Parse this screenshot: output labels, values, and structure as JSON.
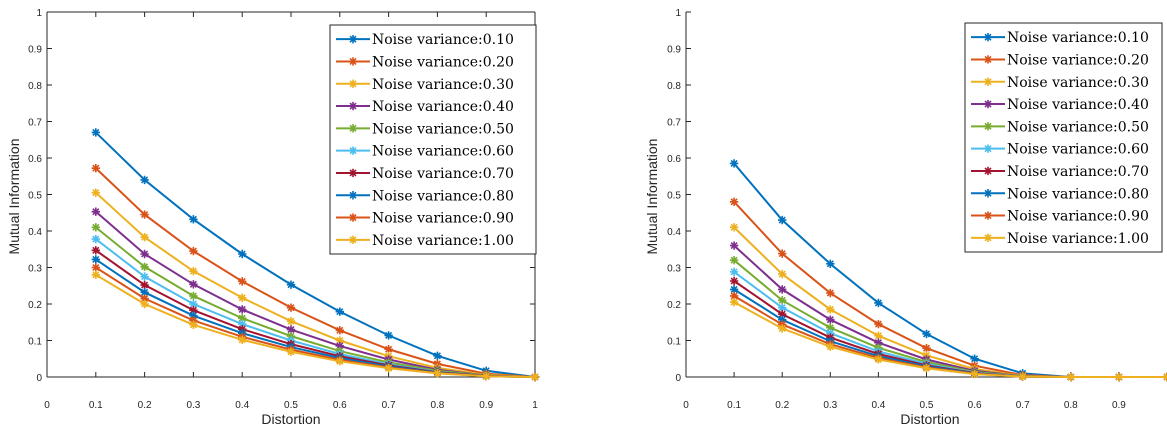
{
  "colors": [
    "#0072bd",
    "#d95319",
    "#edb120",
    "#7e2f8e",
    "#77ac30",
    "#4dbeee",
    "#a2142f",
    "#0072bd",
    "#d95319",
    "#edb120"
  ],
  "legend_labels": [
    "Noise variance:0.10",
    "Noise variance:0.20",
    "Noise variance:0.30",
    "Noise variance:0.40",
    "Noise variance:0.50",
    "Noise variance:0.60",
    "Noise variance:0.70",
    "Noise variance:0.80",
    "Noise variance:0.90",
    "Noise variance:1.00"
  ],
  "chart_data": [
    {
      "type": "line",
      "xlabel": "Distortion",
      "ylabel": "Mutual Information",
      "xlim": [
        0,
        1
      ],
      "ylim": [
        0,
        1
      ],
      "xticks": [
        0,
        0.1,
        0.2,
        0.3,
        0.4,
        0.5,
        0.6,
        0.7,
        0.8,
        0.9,
        1
      ],
      "yticks": [
        0,
        0.1,
        0.2,
        0.3,
        0.4,
        0.5,
        0.6,
        0.7,
        0.8,
        0.9,
        1
      ],
      "legend_position": "top-right",
      "grid": false,
      "x": [
        0.1,
        0.2,
        0.3,
        0.4,
        0.5,
        0.6,
        0.7,
        0.8,
        0.9,
        1.0
      ],
      "series": [
        {
          "name": "Noise variance:0.10",
          "values": [
            0.67,
            0.54,
            0.432,
            0.337,
            0.253,
            0.179,
            0.114,
            0.058,
            0.017,
            0.0
          ]
        },
        {
          "name": "Noise variance:0.20",
          "values": [
            0.572,
            0.445,
            0.345,
            0.262,
            0.19,
            0.128,
            0.076,
            0.036,
            0.009,
            0.0
          ]
        },
        {
          "name": "Noise variance:0.30",
          "values": [
            0.505,
            0.383,
            0.29,
            0.217,
            0.153,
            0.1,
            0.057,
            0.025,
            0.006,
            0.0
          ]
        },
        {
          "name": "Noise variance:0.40",
          "values": [
            0.453,
            0.337,
            0.254,
            0.185,
            0.13,
            0.085,
            0.048,
            0.02,
            0.004,
            0.0
          ]
        },
        {
          "name": "Noise variance:0.50",
          "values": [
            0.41,
            0.302,
            0.222,
            0.161,
            0.112,
            0.071,
            0.04,
            0.017,
            0.004,
            0.0
          ]
        },
        {
          "name": "Noise variance:0.60",
          "values": [
            0.378,
            0.275,
            0.2,
            0.145,
            0.1,
            0.063,
            0.035,
            0.014,
            0.003,
            0.0
          ]
        },
        {
          "name": "Noise variance:0.70",
          "values": [
            0.347,
            0.252,
            0.183,
            0.131,
            0.09,
            0.057,
            0.032,
            0.013,
            0.003,
            0.0
          ]
        },
        {
          "name": "Noise variance:0.80",
          "values": [
            0.322,
            0.232,
            0.168,
            0.12,
            0.082,
            0.052,
            0.029,
            0.012,
            0.002,
            0.0
          ]
        },
        {
          "name": "Noise variance:0.90",
          "values": [
            0.3,
            0.215,
            0.155,
            0.11,
            0.075,
            0.047,
            0.026,
            0.011,
            0.002,
            0.0
          ]
        },
        {
          "name": "Noise variance:1.00",
          "values": [
            0.28,
            0.2,
            0.143,
            0.102,
            0.069,
            0.043,
            0.024,
            0.01,
            0.002,
            0.0
          ]
        }
      ]
    },
    {
      "type": "line",
      "xlabel": "Distortion",
      "ylabel": "Mutual Information",
      "xlim": [
        0,
        1
      ],
      "ylim": [
        0,
        1
      ],
      "xticks": [
        0,
        0.1,
        0.2,
        0.3,
        0.4,
        0.5,
        0.6,
        0.7,
        0.8,
        0.9
      ],
      "yticks": [
        0,
        0.1,
        0.2,
        0.3,
        0.4,
        0.5,
        0.6,
        0.7,
        0.8,
        0.9,
        1
      ],
      "legend_position": "top-right",
      "grid": false,
      "x": [
        0.1,
        0.2,
        0.3,
        0.4,
        0.5,
        0.6,
        0.7,
        0.8,
        0.9,
        1.0
      ],
      "series": [
        {
          "name": "Noise variance:0.10",
          "values": [
            0.585,
            0.43,
            0.31,
            0.203,
            0.118,
            0.05,
            0.01,
            0.0,
            0.0,
            0.0
          ]
        },
        {
          "name": "Noise variance:0.20",
          "values": [
            0.48,
            0.338,
            0.23,
            0.145,
            0.079,
            0.031,
            0.005,
            0.0,
            0.0,
            0.0
          ]
        },
        {
          "name": "Noise variance:0.30",
          "values": [
            0.41,
            0.282,
            0.185,
            0.113,
            0.059,
            0.022,
            0.003,
            0.0,
            0.0,
            0.0
          ]
        },
        {
          "name": "Noise variance:0.40",
          "values": [
            0.36,
            0.24,
            0.157,
            0.094,
            0.048,
            0.017,
            0.002,
            0.0,
            0.0,
            0.0
          ]
        },
        {
          "name": "Noise variance:0.50",
          "values": [
            0.32,
            0.21,
            0.135,
            0.08,
            0.041,
            0.014,
            0.002,
            0.0,
            0.0,
            0.0
          ]
        },
        {
          "name": "Noise variance:0.60",
          "values": [
            0.288,
            0.19,
            0.12,
            0.07,
            0.036,
            0.012,
            0.001,
            0.0,
            0.0,
            0.0
          ]
        },
        {
          "name": "Noise variance:0.70",
          "values": [
            0.263,
            0.172,
            0.108,
            0.063,
            0.032,
            0.011,
            0.001,
            0.0,
            0.0,
            0.0
          ]
        },
        {
          "name": "Noise variance:0.80",
          "values": [
            0.24,
            0.157,
            0.098,
            0.057,
            0.029,
            0.01,
            0.001,
            0.0,
            0.0,
            0.0
          ]
        },
        {
          "name": "Noise variance:0.90",
          "values": [
            0.222,
            0.144,
            0.09,
            0.052,
            0.026,
            0.009,
            0.001,
            0.0,
            0.0,
            0.0
          ]
        },
        {
          "name": "Noise variance:1.00",
          "values": [
            0.205,
            0.133,
            0.083,
            0.048,
            0.024,
            0.008,
            0.001,
            0.0,
            0.0,
            0.0
          ]
        }
      ]
    }
  ]
}
